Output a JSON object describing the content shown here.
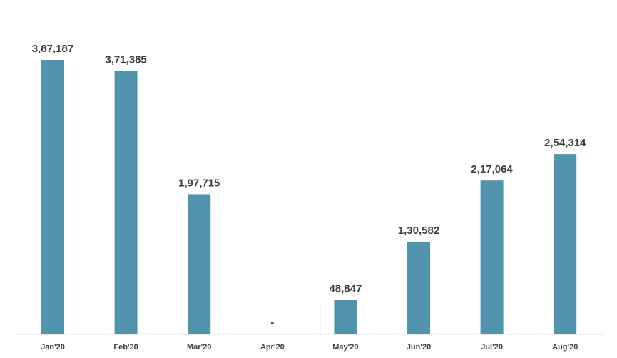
{
  "chart_data": {
    "type": "bar",
    "title": "",
    "xlabel": "",
    "ylabel": "",
    "categories": [
      "Jan'20",
      "Feb'20",
      "Mar'20",
      "Apr'20",
      "May'20",
      "Jun'20",
      "Jul'20",
      "Aug'20"
    ],
    "values": [
      387187,
      371385,
      197715,
      0,
      48847,
      130582,
      217064,
      254314
    ],
    "value_labels": [
      "3,87,187",
      "3,71,385",
      "1,97,715",
      "-",
      "48,847",
      "1,30,582",
      "2,17,064",
      "2,54,314"
    ],
    "ylim": [
      0,
      387187
    ],
    "grid": false,
    "legend": "none",
    "bar_color": "#5294ad",
    "axis_color": "#d9d9d9",
    "label_color": "#404040"
  }
}
